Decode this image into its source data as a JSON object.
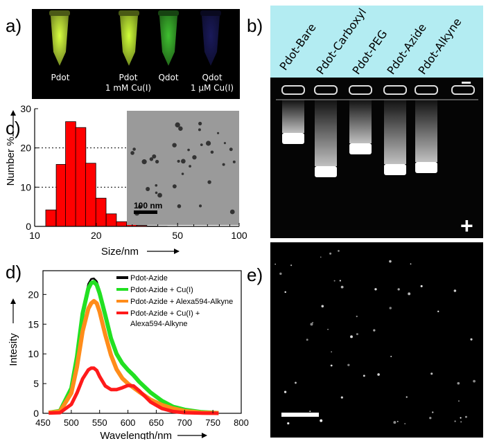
{
  "panels": {
    "a": "a)",
    "b": "b)",
    "c": "c)",
    "d": "d)",
    "e": "e)"
  },
  "panel_a": {
    "tubes": [
      {
        "line1": "Pdot",
        "line2": "",
        "color": "#d8ff40"
      },
      {
        "line1": "Pdot",
        "line2": "1 mM Cu(I)",
        "color": "#d0ff38"
      },
      {
        "line1": "Qdot",
        "line2": "",
        "color": "#3fbf30"
      },
      {
        "line1": "Qdot",
        "line2": "1 μM Cu(I)",
        "color": "#1a1a5a"
      }
    ]
  },
  "panel_b": {
    "lanes": [
      "Pdot-Bare",
      "Pdot-Carboxyl",
      "Pdot-PEG",
      "Pdot-Azide",
      "Pdot-Alkyne"
    ],
    "minus": "−",
    "plus": "+",
    "header_color": "#b3ecf2"
  },
  "chart_data": [
    {
      "type": "bar",
      "panel": "c",
      "xlabel": "Size/nm",
      "ylabel": "Number %",
      "x_scale": "log",
      "xlim": [
        10,
        100
      ],
      "ylim": [
        0,
        30
      ],
      "x_ticks": [
        "10",
        "20",
        "50",
        "100"
      ],
      "y_ticks": [
        "0",
        "10",
        "20",
        "30"
      ],
      "grid": "dotted at 10 and 20",
      "bins_nm": [
        12,
        13.5,
        15,
        16.8,
        18.8,
        21.1,
        23.7,
        26.6,
        29.8,
        33.4,
        37.5,
        42
      ],
      "values": [
        4.2,
        15.8,
        26.7,
        25.2,
        16.1,
        7.2,
        3.2,
        1.2,
        0.5,
        0.25,
        0.1,
        0.05
      ],
      "bar_color": "#ff0000",
      "inset_scale": "100 nm"
    },
    {
      "type": "line",
      "panel": "d",
      "xlabel": "Wavelength/nm",
      "ylabel": "Intesity",
      "xlim": [
        450,
        800
      ],
      "ylim": [
        0,
        24
      ],
      "x_ticks": [
        "450",
        "500",
        "550",
        "600",
        "650",
        "700",
        "750",
        "800"
      ],
      "y_ticks": [
        "0",
        "5",
        "10",
        "15",
        "20"
      ],
      "legend_position": "top-right",
      "x": [
        460,
        480,
        500,
        510,
        520,
        530,
        535,
        540,
        545,
        550,
        560,
        570,
        580,
        590,
        600,
        610,
        620,
        640,
        660,
        680,
        700,
        730,
        760
      ],
      "series": [
        {
          "name": "Pdot-Azide",
          "color": "#000000",
          "values": [
            0.1,
            0.4,
            4.5,
            10.0,
            17.5,
            21.8,
            22.6,
            22.7,
            22.2,
            20.8,
            17.0,
            13.0,
            10.3,
            8.6,
            7.5,
            6.6,
            5.5,
            3.6,
            2.2,
            1.2,
            0.6,
            0.2,
            0.05
          ]
        },
        {
          "name": "Pdot-Azide + Cu(I)",
          "color": "#22e022",
          "values": [
            0.1,
            0.4,
            4.2,
            9.5,
            16.8,
            21.0,
            21.9,
            22.1,
            21.6,
            20.2,
            16.5,
            12.6,
            10.0,
            8.4,
            7.3,
            6.4,
            5.3,
            3.5,
            2.1,
            1.1,
            0.6,
            0.2,
            0.05
          ]
        },
        {
          "name": "Pdot-Azide + Alexa594-Alkyne",
          "color": "#ff8c1a",
          "values": [
            0.1,
            0.3,
            3.4,
            7.8,
            13.8,
            17.6,
            18.5,
            18.9,
            18.5,
            17.1,
            13.2,
            9.8,
            7.4,
            5.9,
            5.0,
            4.3,
            3.6,
            2.3,
            1.4,
            0.8,
            0.4,
            0.1,
            0.05
          ]
        },
        {
          "name": "Pdot-Azide + Cu(I) +\nAlexa594-Alkyne",
          "color": "#ff1a1a",
          "values": [
            0.05,
            0.1,
            1.5,
            3.4,
            5.8,
            7.3,
            7.6,
            7.6,
            7.2,
            6.2,
            4.6,
            4.0,
            4.0,
            4.3,
            4.7,
            4.6,
            3.8,
            1.9,
            0.8,
            0.3,
            0.1,
            0.03,
            0.0
          ]
        }
      ]
    }
  ]
}
